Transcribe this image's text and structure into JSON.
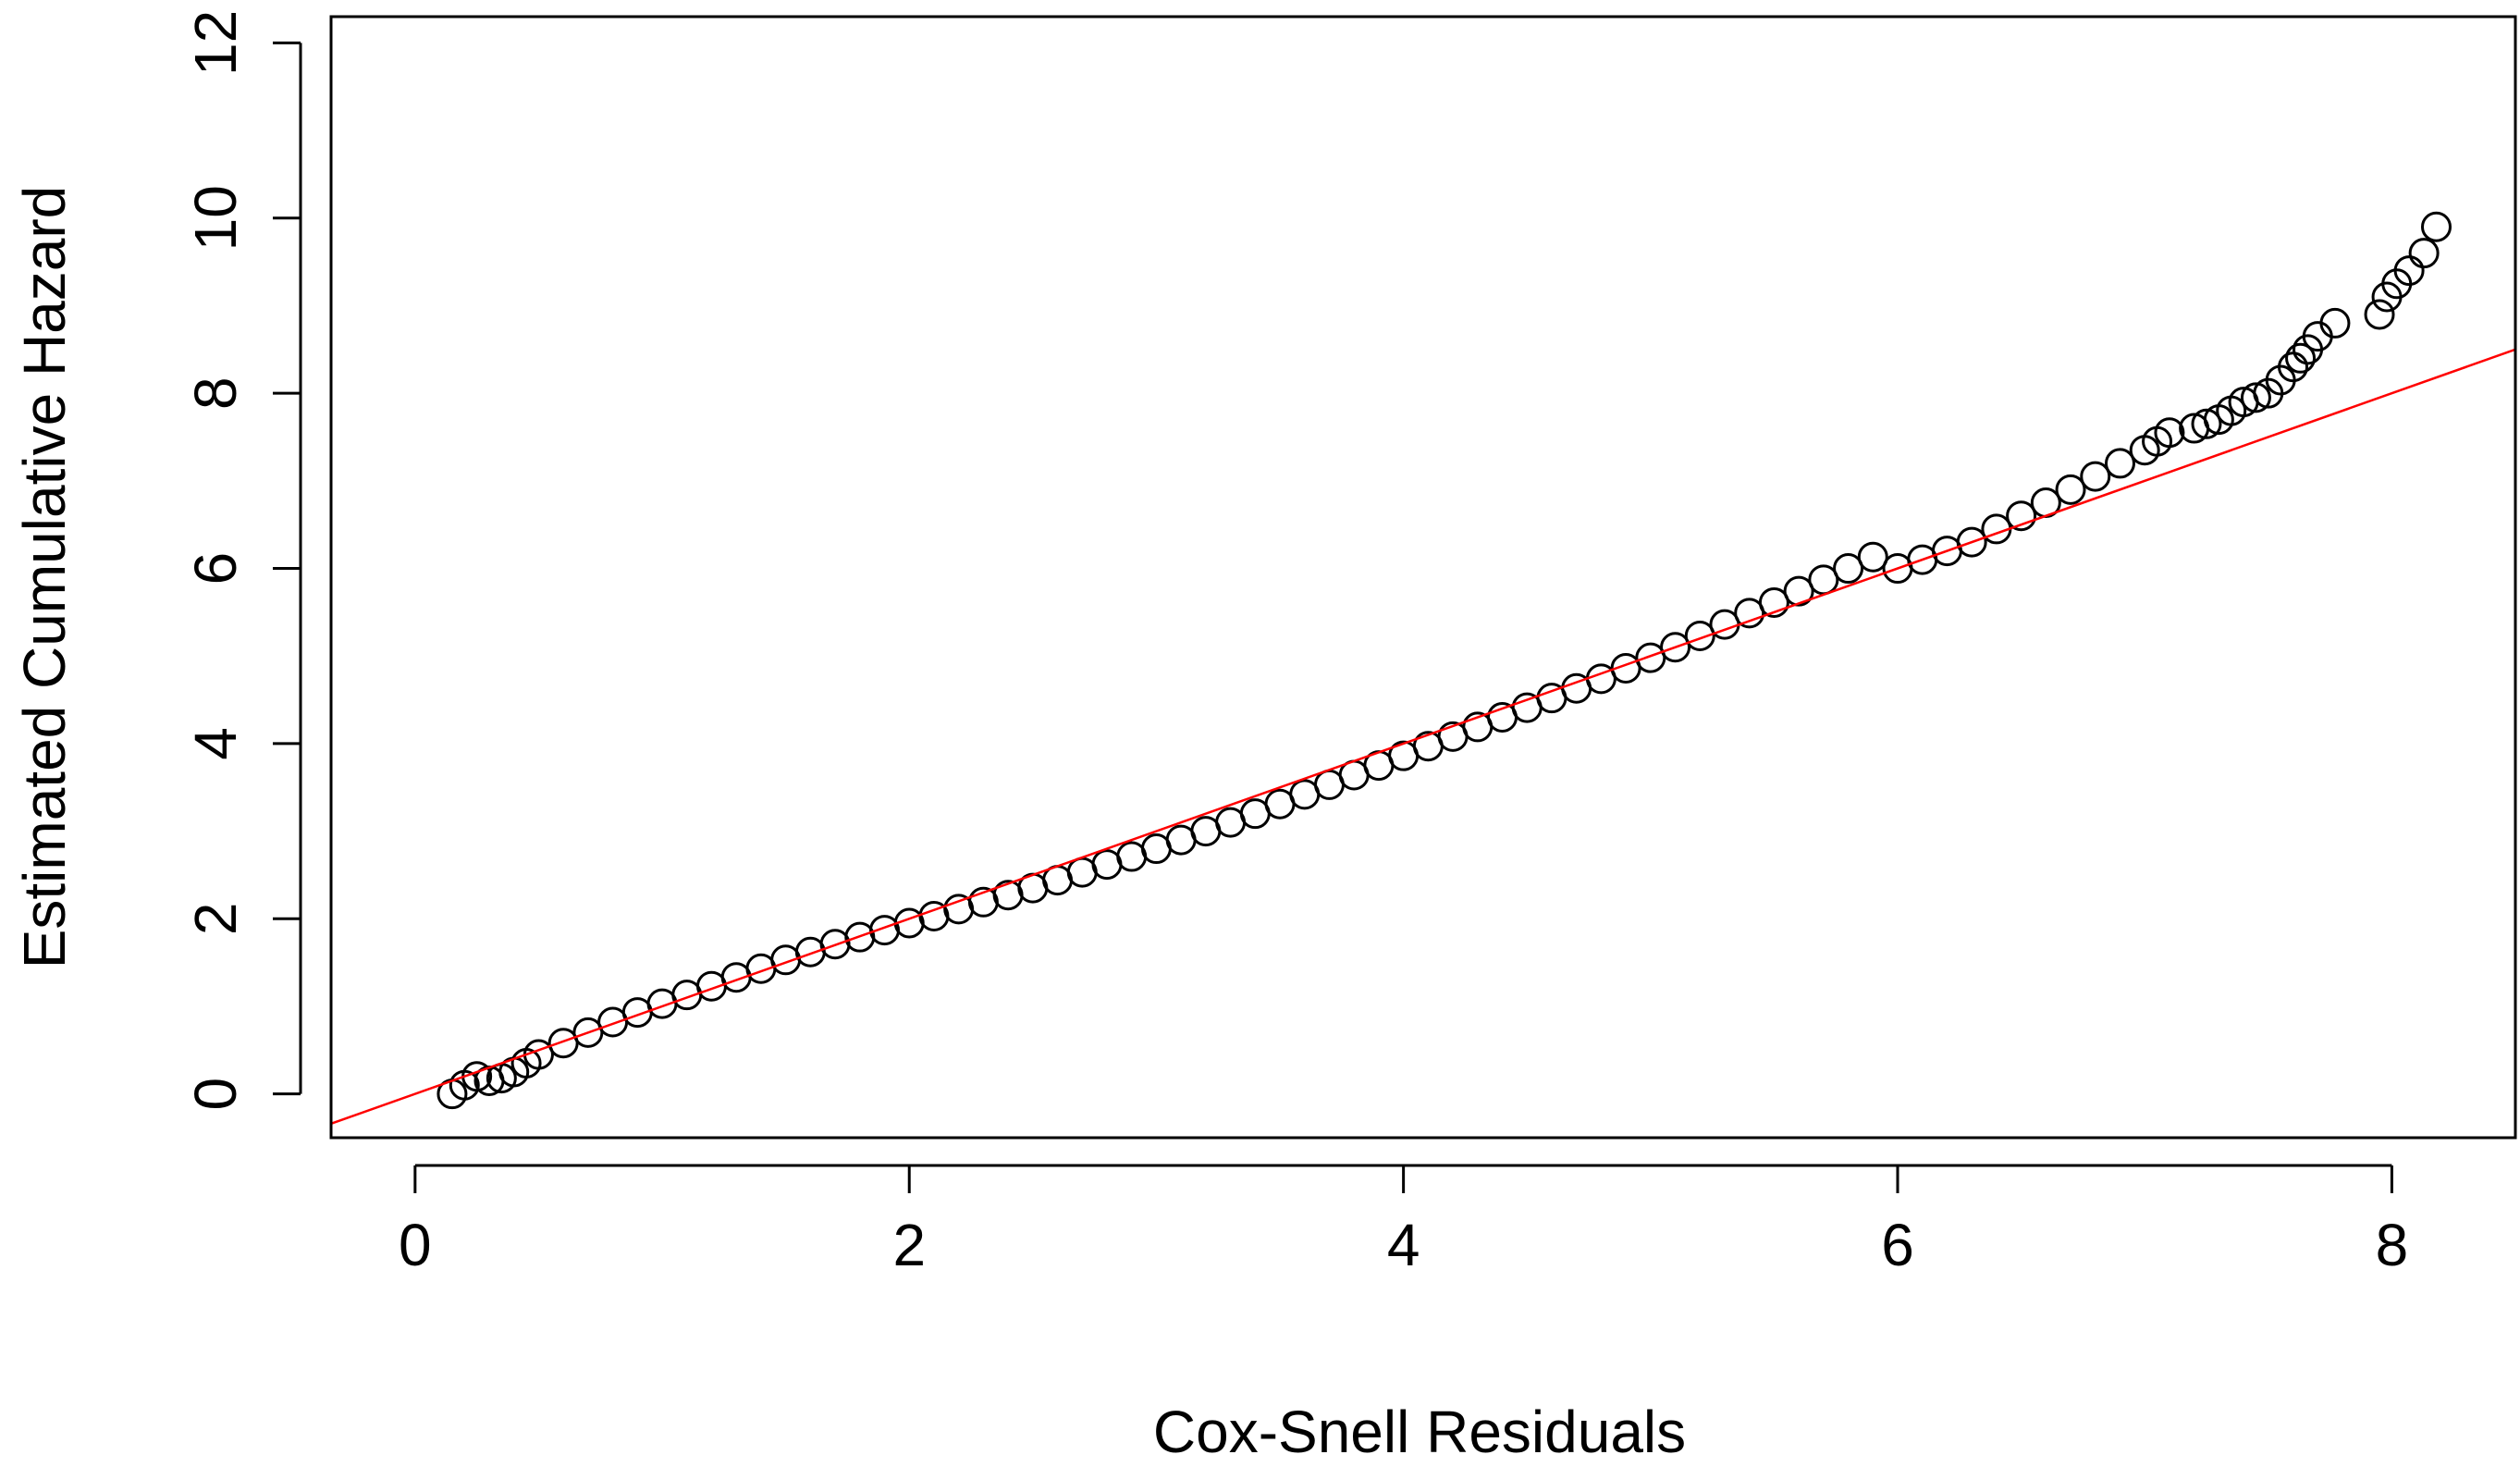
{
  "chart_data": {
    "type": "scatter",
    "title": "",
    "xlabel": "Cox-Snell Residuals",
    "ylabel": "Estimated Cumulative Hazard",
    "xlim": [
      -0.34,
      8.5
    ],
    "ylim": [
      -0.5,
      12.3
    ],
    "xticks": [
      0,
      2,
      4,
      6,
      8
    ],
    "yticks": [
      0,
      2,
      4,
      6,
      8,
      10,
      12
    ],
    "grid": false,
    "legend": "none",
    "colors": {
      "points": "#000000",
      "reference_line": "#ff0000",
      "axis": "#000000"
    },
    "reference_line": {
      "intercept": 0,
      "slope": 1
    },
    "series": [
      {
        "marker": "open-circle",
        "x": [
          0.15,
          0.2,
          0.25,
          0.3,
          0.35,
          0.4,
          0.45,
          0.5,
          0.6,
          0.7,
          0.8,
          0.9,
          1.0,
          1.1,
          1.2,
          1.3,
          1.4,
          1.5,
          1.6,
          1.7,
          1.8,
          1.9,
          2.0,
          2.1,
          2.2,
          2.3,
          2.4,
          2.5,
          2.6,
          2.7,
          2.8,
          2.9,
          3.0,
          3.1,
          3.2,
          3.3,
          3.4,
          3.5,
          3.6,
          3.7,
          3.8,
          3.9,
          4.0,
          4.1,
          4.2,
          4.3,
          4.4,
          4.5,
          4.6,
          4.7,
          4.8,
          4.9,
          5.0,
          5.1,
          5.2,
          5.3,
          5.4,
          5.5,
          5.6,
          5.7,
          5.8,
          5.9,
          6.0,
          6.1,
          6.2,
          6.3,
          6.4,
          6.5,
          6.6,
          6.7,
          6.8,
          6.9,
          7.0,
          7.05,
          7.1,
          7.2,
          7.25,
          7.3,
          7.35,
          7.4,
          7.45,
          7.5,
          7.55,
          7.6,
          7.63,
          7.66,
          7.7,
          7.77,
          7.95,
          7.98,
          8.02,
          8.07,
          8.13,
          8.18
        ],
        "y": [
          0.0,
          0.1,
          0.2,
          0.15,
          0.18,
          0.25,
          0.35,
          0.45,
          0.58,
          0.7,
          0.82,
          0.93,
          1.03,
          1.13,
          1.23,
          1.33,
          1.43,
          1.53,
          1.62,
          1.71,
          1.79,
          1.87,
          1.95,
          2.03,
          2.11,
          2.19,
          2.27,
          2.35,
          2.44,
          2.53,
          2.62,
          2.71,
          2.8,
          2.9,
          3.0,
          3.1,
          3.2,
          3.31,
          3.42,
          3.53,
          3.64,
          3.75,
          3.86,
          3.97,
          4.08,
          4.19,
          4.3,
          4.41,
          4.52,
          4.63,
          4.74,
          4.86,
          4.98,
          5.1,
          5.23,
          5.36,
          5.49,
          5.61,
          5.74,
          5.87,
          6.0,
          6.13,
          6.0,
          6.1,
          6.2,
          6.3,
          6.45,
          6.6,
          6.75,
          6.9,
          7.05,
          7.2,
          7.35,
          7.45,
          7.55,
          7.6,
          7.65,
          7.7,
          7.8,
          7.9,
          7.95,
          8.0,
          8.15,
          8.3,
          8.4,
          8.5,
          8.65,
          8.8,
          8.9,
          9.1,
          9.25,
          9.4,
          9.6,
          9.9
        ]
      }
    ]
  }
}
